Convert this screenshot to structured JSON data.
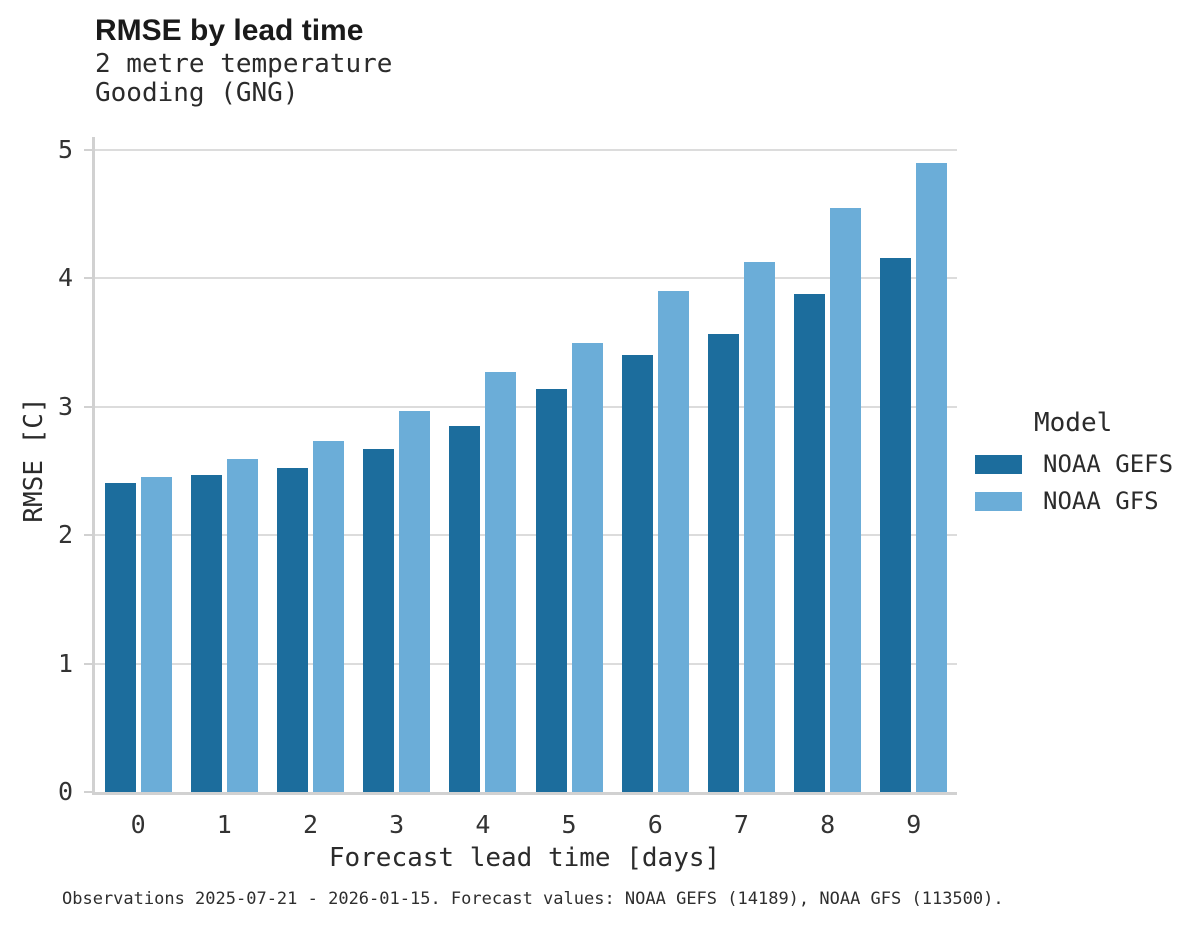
{
  "header": {
    "title": "RMSE by lead time",
    "subtitle_line1": "2 metre temperature",
    "subtitle_line2": "Gooding (GNG)"
  },
  "chart_data": {
    "type": "bar",
    "title": "RMSE by lead time",
    "subtitle": [
      "2 metre temperature",
      "Gooding (GNG)"
    ],
    "categories": [
      "0",
      "1",
      "2",
      "3",
      "4",
      "5",
      "6",
      "7",
      "8",
      "9"
    ],
    "series": [
      {
        "name": "NOAA GEFS",
        "color": "#1c6d9d",
        "values": [
          2.41,
          2.47,
          2.52,
          2.67,
          2.85,
          3.14,
          3.4,
          3.57,
          3.88,
          4.16
        ]
      },
      {
        "name": "NOAA GFS",
        "color": "#6badd8",
        "values": [
          2.45,
          2.59,
          2.73,
          2.97,
          3.27,
          3.5,
          3.9,
          4.13,
          4.55,
          4.9
        ]
      }
    ],
    "xlabel": "Forecast lead time [days]",
    "ylabel": "RMSE [C]",
    "ylim": [
      0,
      5
    ],
    "yticks": [
      0,
      1,
      2,
      3,
      4,
      5
    ],
    "grid": true,
    "legend_title": "Model",
    "legend_position": "right",
    "colors": {
      "grid": "#dcdcdc",
      "axis": "#d1d1d1",
      "text": "#2b2b2b"
    }
  },
  "caption": "Observations 2025-07-21 - 2026-01-15. Forecast values: NOAA GEFS (14189), NOAA GFS (113500)."
}
